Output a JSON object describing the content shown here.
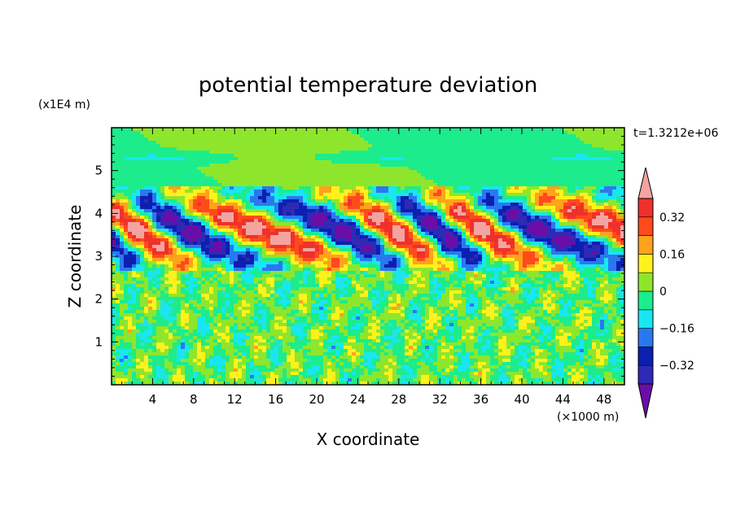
{
  "chart_data": {
    "type": "heatmap",
    "title": "potential temperature deviation",
    "xlabel": "X coordinate",
    "ylabel": "Z coordinate",
    "x_unit": "(×1000 m)",
    "y_unit": "(x1E4 m)",
    "time_label": "t=1.3212e+06",
    "xlim": [
      0,
      50
    ],
    "ylim": [
      0,
      6
    ],
    "x_ticks": [
      "4",
      "8",
      "12",
      "16",
      "20",
      "24",
      "28",
      "32",
      "36",
      "40",
      "44",
      "48"
    ],
    "y_ticks": [
      "1",
      "2",
      "3",
      "4",
      "5"
    ],
    "colorbar_levels": [
      -0.4,
      -0.32,
      -0.24,
      -0.16,
      -0.08,
      0,
      0.08,
      0.16,
      0.24,
      0.32,
      0.4
    ],
    "colorbar_ticks": [
      "0.32",
      "0.16",
      "0",
      "−0.16",
      "−0.32"
    ],
    "colorbar_colors": [
      "#6c0da8",
      "#2e2ab6",
      "#0d1fb0",
      "#2a78f0",
      "#19e6f2",
      "#1cec8c",
      "#8ee62c",
      "#fff21c",
      "#ffa21c",
      "#ff4a1c",
      "#f0302a",
      "#f4a4a0"
    ]
  }
}
